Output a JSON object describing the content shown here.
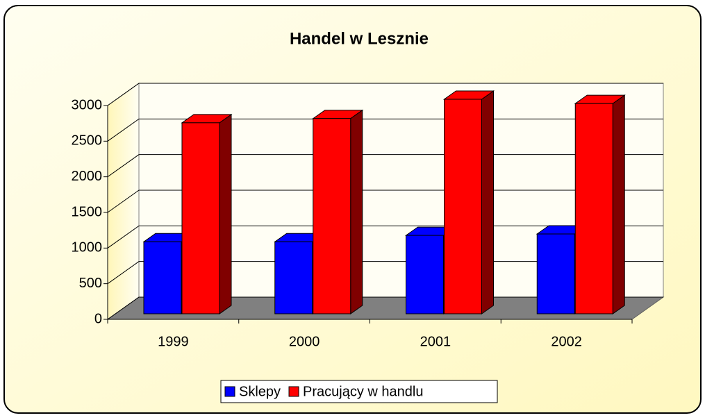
{
  "chart_data": {
    "type": "bar3d",
    "title": "Handel w Lesznie",
    "categories": [
      "1999",
      "2000",
      "2001",
      "2002"
    ],
    "series": [
      {
        "name": "Sklepy",
        "color": "#0000ff",
        "side": "#000080",
        "values": [
          1010,
          1010,
          1100,
          1120
        ]
      },
      {
        "name": "Pracujący w handlu",
        "color": "#ff0000",
        "side": "#800000",
        "values": [
          2680,
          2740,
          3010,
          2950
        ]
      }
    ],
    "ylim": [
      0,
      3000
    ],
    "yticks": [
      0,
      500,
      1000,
      1500,
      2000,
      2500,
      3000
    ],
    "grid": true
  }
}
